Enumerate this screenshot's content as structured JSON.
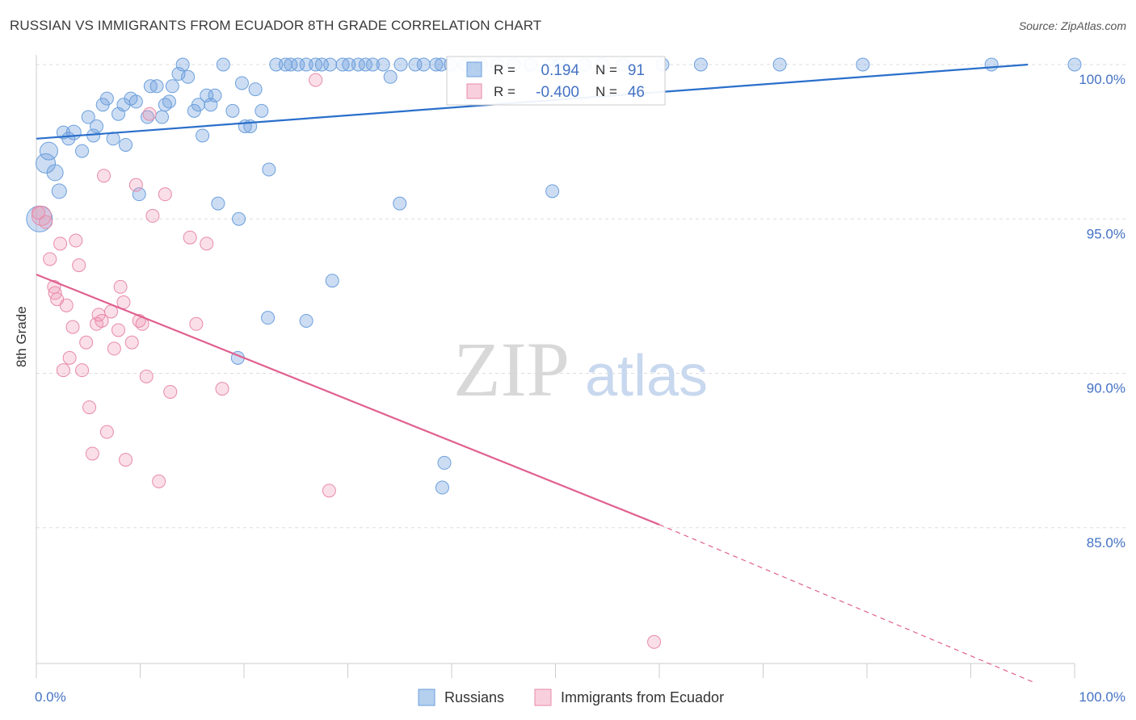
{
  "title": "RUSSIAN VS IMMIGRANTS FROM ECUADOR 8TH GRADE CORRELATION CHART",
  "source": "Source: ZipAtlas.com",
  "watermark": {
    "part1": "ZIP",
    "part2": "atlas"
  },
  "colors": {
    "blue": "#6c9fdd",
    "blue_fill": "rgba(108,159,221,0.35)",
    "blue_line": "#2a6fcb",
    "pink": "#e88aa8",
    "pink_fill": "rgba(240,150,180,0.30)",
    "pink_line": "#e0608f",
    "axis_text": "#4472c4",
    "grid": "#dddddd"
  },
  "legend_box": {
    "r_label": "R =",
    "n_label": "N =",
    "rows": [
      {
        "r": "0.194",
        "n": "91",
        "color": "blue"
      },
      {
        "r": "-0.400",
        "n": "46",
        "color": "pink"
      }
    ]
  },
  "bottom_legend": [
    "Russians",
    "Immigrants from Ecuador"
  ],
  "chart_data": {
    "type": "scatter",
    "title": "RUSSIAN VS IMMIGRANTS FROM ECUADOR 8TH GRADE CORRELATION CHART",
    "xlabel": "",
    "ylabel": "8th Grade",
    "xlim": [
      0,
      100
    ],
    "ylim": [
      80,
      100.5
    ],
    "x_tick_labels": [
      {
        "value": 0,
        "label": "0.0%"
      },
      {
        "value": 100,
        "label": "100.0%"
      }
    ],
    "y_tick_labels": [
      {
        "value": 100,
        "label": "100.0%"
      },
      {
        "value": 95,
        "label": "95.0%"
      },
      {
        "value": 90,
        "label": "90.0%"
      },
      {
        "value": 85,
        "label": "85.0%"
      }
    ],
    "legend_position": "bottom",
    "series": [
      {
        "name": "Russians",
        "color": "blue",
        "trend": {
          "x": [
            0,
            95.5
          ],
          "y": [
            97.6,
            100.0
          ],
          "dashed_to": null
        },
        "points": [
          [
            0.3,
            95.0,
            16
          ],
          [
            1.2,
            97.2,
            11
          ],
          [
            0.9,
            96.8,
            12
          ],
          [
            1.8,
            96.5,
            10
          ],
          [
            2.2,
            95.9,
            9
          ],
          [
            2.6,
            97.8,
            8
          ],
          [
            3.1,
            97.6,
            8
          ],
          [
            3.6,
            97.8,
            9
          ],
          [
            4.4,
            97.2,
            8
          ],
          [
            5.0,
            98.3,
            8
          ],
          [
            5.5,
            97.7,
            8
          ],
          [
            5.8,
            98.0,
            8
          ],
          [
            6.4,
            98.7,
            8
          ],
          [
            6.8,
            98.9,
            8
          ],
          [
            7.4,
            97.6,
            8
          ],
          [
            7.9,
            98.4,
            8
          ],
          [
            8.4,
            98.7,
            8
          ],
          [
            8.6,
            97.4,
            8
          ],
          [
            9.1,
            98.9,
            8
          ],
          [
            9.6,
            98.8,
            8
          ],
          [
            9.9,
            95.8,
            8
          ],
          [
            10.7,
            98.3,
            8
          ],
          [
            11.0,
            99.3,
            8
          ],
          [
            11.6,
            99.3,
            8
          ],
          [
            12.1,
            98.3,
            8
          ],
          [
            12.4,
            98.7,
            8
          ],
          [
            12.8,
            98.8,
            8
          ],
          [
            13.1,
            99.3,
            8
          ],
          [
            13.7,
            99.7,
            8
          ],
          [
            14.1,
            100.0,
            8
          ],
          [
            14.6,
            99.6,
            8
          ],
          [
            15.2,
            98.5,
            8
          ],
          [
            15.6,
            98.7,
            8
          ],
          [
            16.0,
            97.7,
            8
          ],
          [
            16.4,
            99.0,
            8
          ],
          [
            16.8,
            98.7,
            8
          ],
          [
            17.2,
            99.0,
            8
          ],
          [
            17.5,
            95.5,
            8
          ],
          [
            18.0,
            100.0,
            8
          ],
          [
            18.9,
            98.5,
            8
          ],
          [
            19.5,
            95.0,
            8
          ],
          [
            19.8,
            99.4,
            8
          ],
          [
            20.1,
            98.0,
            8
          ],
          [
            20.6,
            98.0,
            8
          ],
          [
            21.1,
            99.2,
            8
          ],
          [
            21.7,
            98.5,
            8
          ],
          [
            22.4,
            96.6,
            8
          ],
          [
            23.1,
            100.0,
            8
          ],
          [
            24.0,
            100.0,
            8
          ],
          [
            24.5,
            100.0,
            8
          ],
          [
            25.2,
            100.0,
            8
          ],
          [
            26.0,
            100.0,
            8
          ],
          [
            26.9,
            100.0,
            8
          ],
          [
            27.5,
            100.0,
            8
          ],
          [
            28.3,
            100.0,
            8
          ],
          [
            29.5,
            100.0,
            8
          ],
          [
            30.1,
            100.0,
            8
          ],
          [
            31.0,
            100.0,
            8
          ],
          [
            31.7,
            100.0,
            8
          ],
          [
            32.4,
            100.0,
            8
          ],
          [
            33.4,
            100.0,
            8
          ],
          [
            34.1,
            99.6,
            8
          ],
          [
            35.1,
            100.0,
            8
          ],
          [
            36.5,
            100.0,
            8
          ],
          [
            37.3,
            100.0,
            8
          ],
          [
            38.5,
            100.0,
            8
          ],
          [
            39.0,
            100.0,
            8
          ],
          [
            39.9,
            100.0,
            8
          ],
          [
            41.3,
            100.0,
            8
          ],
          [
            42.8,
            100.0,
            8
          ],
          [
            44.4,
            100.0,
            8
          ],
          [
            46.0,
            100.0,
            8
          ],
          [
            47.6,
            100.0,
            8
          ],
          [
            49.6,
            100.0,
            8
          ],
          [
            50.4,
            100.0,
            8
          ],
          [
            52.8,
            100.0,
            8
          ],
          [
            54.5,
            100.0,
            8
          ],
          [
            56.5,
            100.0,
            8
          ],
          [
            60.3,
            100.0,
            8
          ],
          [
            64.0,
            100.0,
            8
          ],
          [
            71.6,
            100.0,
            8
          ],
          [
            79.6,
            100.0,
            8
          ],
          [
            92.0,
            100.0,
            8
          ],
          [
            100.0,
            100.0,
            8
          ],
          [
            49.7,
            95.9,
            8
          ],
          [
            35.0,
            95.5,
            8
          ],
          [
            28.5,
            93.0,
            8
          ],
          [
            22.3,
            91.8,
            8
          ],
          [
            26.0,
            91.7,
            8
          ],
          [
            19.4,
            90.5,
            8
          ],
          [
            39.3,
            87.1,
            8
          ],
          [
            39.1,
            86.3,
            8
          ]
        ]
      },
      {
        "name": "Immigrants from Ecuador",
        "color": "pink",
        "trend": {
          "x": [
            0,
            60
          ],
          "y": [
            93.2,
            85.1
          ],
          "dashed_to": [
            96.0,
            80.0
          ]
        },
        "points": [
          [
            0.5,
            95.1,
            12
          ],
          [
            0.9,
            94.9,
            8
          ],
          [
            1.3,
            93.7,
            8
          ],
          [
            1.7,
            92.8,
            8
          ],
          [
            1.8,
            92.6,
            8
          ],
          [
            2.0,
            92.4,
            8
          ],
          [
            2.3,
            94.2,
            8
          ],
          [
            2.6,
            90.1,
            8
          ],
          [
            2.9,
            92.2,
            8
          ],
          [
            3.2,
            90.5,
            8
          ],
          [
            3.5,
            91.5,
            8
          ],
          [
            3.8,
            94.3,
            8
          ],
          [
            4.1,
            93.5,
            8
          ],
          [
            4.4,
            90.1,
            8
          ],
          [
            4.8,
            91.0,
            8
          ],
          [
            5.1,
            88.9,
            8
          ],
          [
            5.4,
            87.4,
            8
          ],
          [
            5.8,
            91.6,
            8
          ],
          [
            6.0,
            91.9,
            8
          ],
          [
            6.3,
            91.7,
            8
          ],
          [
            6.5,
            96.4,
            8
          ],
          [
            6.8,
            88.1,
            8
          ],
          [
            7.2,
            92.0,
            8
          ],
          [
            7.5,
            90.8,
            8
          ],
          [
            7.9,
            91.4,
            8
          ],
          [
            8.1,
            92.8,
            8
          ],
          [
            8.4,
            92.3,
            8
          ],
          [
            8.6,
            87.2,
            8
          ],
          [
            9.2,
            91.0,
            8
          ],
          [
            9.6,
            96.1,
            8
          ],
          [
            9.9,
            91.7,
            8
          ],
          [
            10.2,
            91.6,
            8
          ],
          [
            10.6,
            89.9,
            8
          ],
          [
            10.9,
            98.4,
            8
          ],
          [
            11.2,
            95.1,
            8
          ],
          [
            11.8,
            86.5,
            8
          ],
          [
            12.4,
            95.8,
            8
          ],
          [
            12.9,
            89.4,
            8
          ],
          [
            14.8,
            94.4,
            8
          ],
          [
            15.4,
            91.6,
            8
          ],
          [
            16.4,
            94.2,
            8
          ],
          [
            17.9,
            89.5,
            8
          ],
          [
            26.9,
            99.5,
            8
          ],
          [
            28.2,
            86.2,
            8
          ],
          [
            59.5,
            81.3,
            8
          ],
          [
            0.2,
            95.2,
            8
          ]
        ]
      }
    ]
  }
}
